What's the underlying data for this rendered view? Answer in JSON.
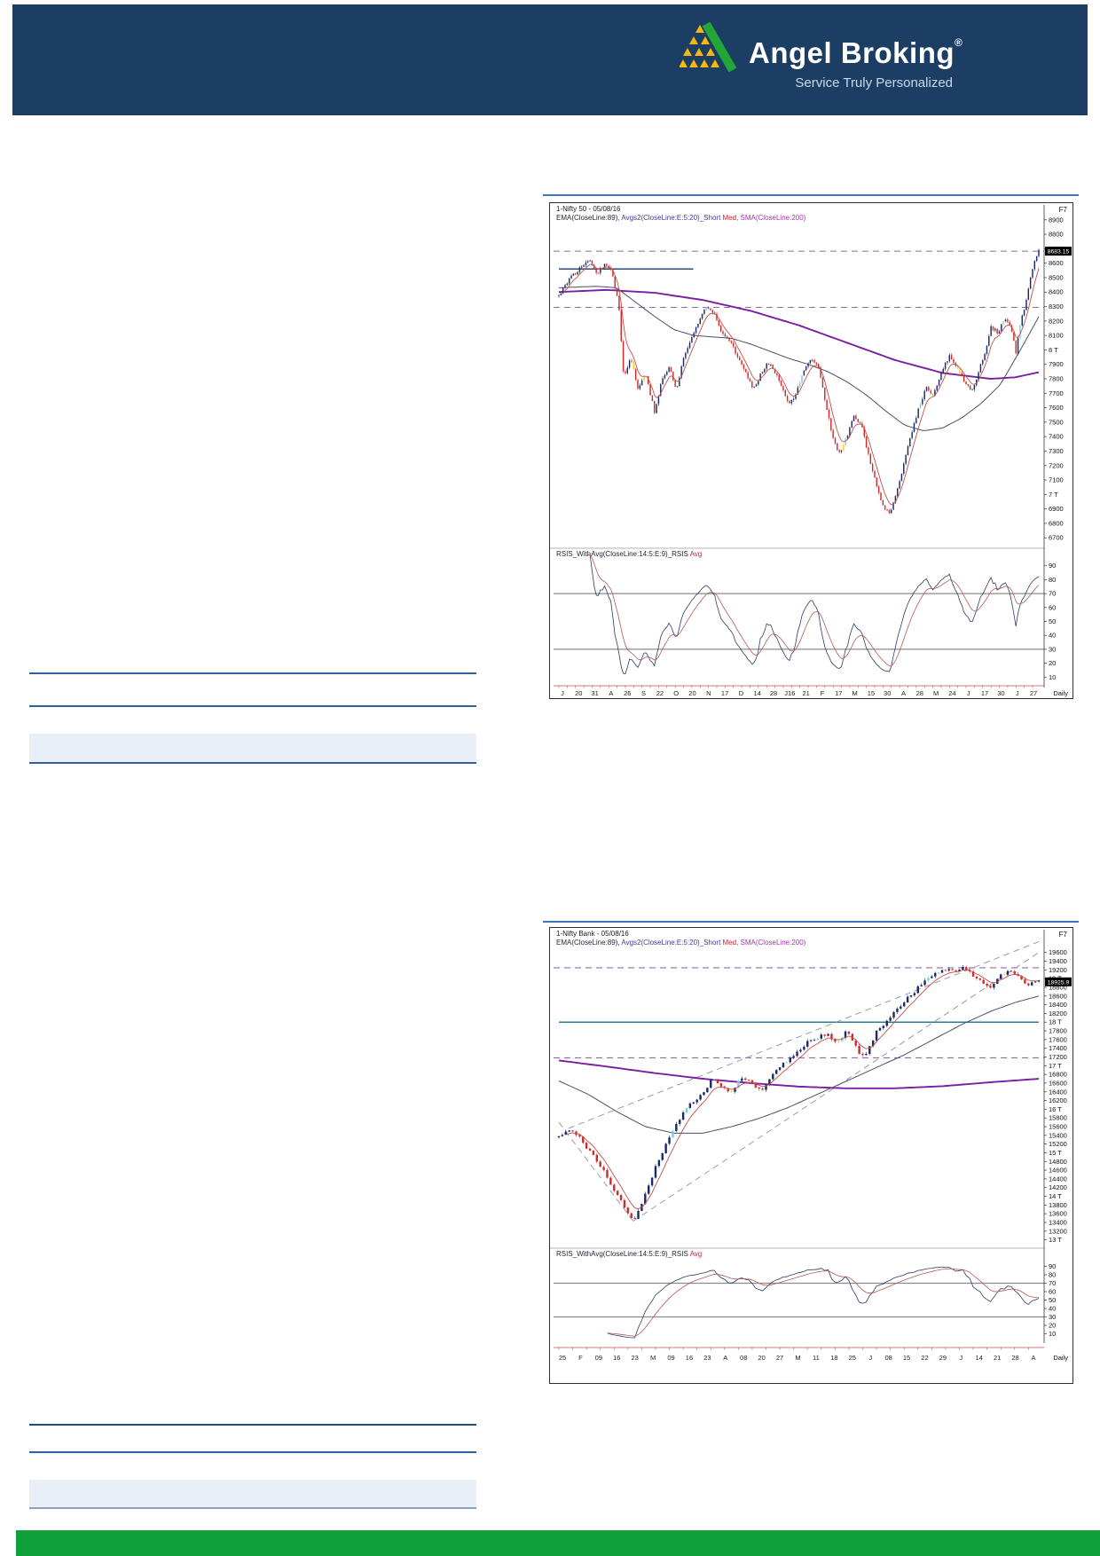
{
  "header": {
    "brand": "Angel Broking",
    "registered": "®",
    "tagline": "Service Truly Personalized",
    "colors": {
      "bar": "#1C3D64",
      "brand_text": "#ffffff",
      "tagline_text": "#C9DAEB",
      "triangle_yellow": "#F6B80E",
      "swoosh_green": "#23A638"
    }
  },
  "decor": {
    "top_rule_blue": "#3A76BF",
    "rule_blue": "#2E5F9E",
    "rule_dark": "#1F4E79",
    "rule_gray": "#8AA2C0",
    "band_blue": "#E9EFF7"
  },
  "footer": {
    "color": "#10A03C"
  },
  "chart_data": [
    {
      "type": "candlestick",
      "title": "1-Nifty 50 - 05/08/16",
      "window_key": "F7",
      "period_label": "Daily",
      "legend": [
        {
          "text": "EMA(CloseLine:89), ",
          "color": "#26263A"
        },
        {
          "text": "Avgs2(CloseLine:E:5:20)_Short ",
          "color": "#3D3D9E"
        },
        {
          "text": "Med, ",
          "color": "#CF2030"
        },
        {
          "text": "SMA(CloseLine:200)",
          "color": "#A335A8"
        }
      ],
      "indicator_label": [
        {
          "text": "RSIS_WithAvg(CloseLine:14:5:E:9)_RSIS ",
          "color": "#26263A"
        },
        {
          "text": "Avg",
          "color": "#CF2030"
        }
      ],
      "last_price": 8683,
      "last_price_label": "8683.15",
      "y_axis": {
        "min": 6640,
        "max": 8960,
        "ticks": [
          [
            8900,
            "8900"
          ],
          [
            8800,
            "8800"
          ],
          [
            8700,
            "8700"
          ],
          [
            8600,
            "8600"
          ],
          [
            8500,
            "8500"
          ],
          [
            8400,
            "8400"
          ],
          [
            8300,
            "8300"
          ],
          [
            8200,
            "8200"
          ],
          [
            8100,
            "8100"
          ],
          [
            8000,
            "8 T"
          ],
          [
            7900,
            "7900"
          ],
          [
            7800,
            "7800"
          ],
          [
            7700,
            "7700"
          ],
          [
            7600,
            "7600"
          ],
          [
            7500,
            "7500"
          ],
          [
            7400,
            "7400"
          ],
          [
            7300,
            "7300"
          ],
          [
            7200,
            "7200"
          ],
          [
            7100,
            "7100"
          ],
          [
            7000,
            "7 T"
          ],
          [
            6900,
            "6900"
          ],
          [
            6800,
            "6800"
          ],
          [
            6700,
            "6700"
          ]
        ]
      },
      "x_ticks": [
        "J",
        "20",
        "31",
        "A",
        "26",
        "S",
        "22",
        "O",
        "20",
        "N",
        "17",
        "D",
        "14",
        "28",
        "J16",
        "21",
        "F",
        "17",
        "M",
        "15",
        "30",
        "A",
        "28",
        "M",
        "24",
        "J",
        "17",
        "30",
        "J",
        "27"
      ],
      "rsi_ticks": [
        "90",
        "80",
        "70",
        "60",
        "50",
        "40",
        "30",
        "20",
        "10"
      ],
      "rsi_guides": [
        70,
        30
      ],
      "n_candles": 232,
      "noise": 16,
      "close_anchors": [
        [
          0,
          8380
        ],
        [
          0.015,
          8460
        ],
        [
          0.03,
          8520
        ],
        [
          0.05,
          8580
        ],
        [
          0.065,
          8630
        ],
        [
          0.08,
          8520
        ],
        [
          0.095,
          8600
        ],
        [
          0.11,
          8560
        ],
        [
          0.125,
          8300
        ],
        [
          0.135,
          7810
        ],
        [
          0.15,
          7950
        ],
        [
          0.165,
          7720
        ],
        [
          0.18,
          7850
        ],
        [
          0.2,
          7560
        ],
        [
          0.215,
          7800
        ],
        [
          0.23,
          7880
        ],
        [
          0.245,
          7720
        ],
        [
          0.26,
          7950
        ],
        [
          0.275,
          8070
        ],
        [
          0.29,
          8180
        ],
        [
          0.305,
          8300
        ],
        [
          0.325,
          8250
        ],
        [
          0.34,
          8120
        ],
        [
          0.36,
          8050
        ],
        [
          0.375,
          7930
        ],
        [
          0.39,
          7840
        ],
        [
          0.405,
          7720
        ],
        [
          0.42,
          7830
        ],
        [
          0.435,
          7920
        ],
        [
          0.45,
          7850
        ],
        [
          0.465,
          7750
        ],
        [
          0.48,
          7620
        ],
        [
          0.495,
          7700
        ],
        [
          0.51,
          7850
        ],
        [
          0.525,
          7950
        ],
        [
          0.54,
          7890
        ],
        [
          0.555,
          7650
        ],
        [
          0.57,
          7400
        ],
        [
          0.585,
          7280
        ],
        [
          0.6,
          7400
        ],
        [
          0.615,
          7540
        ],
        [
          0.63,
          7480
        ],
        [
          0.645,
          7280
        ],
        [
          0.66,
          7080
        ],
        [
          0.675,
          6920
        ],
        [
          0.69,
          6850
        ],
        [
          0.7,
          6980
        ],
        [
          0.715,
          7150
        ],
        [
          0.73,
          7370
        ],
        [
          0.75,
          7600
        ],
        [
          0.765,
          7740
        ],
        [
          0.78,
          7680
        ],
        [
          0.8,
          7870
        ],
        [
          0.815,
          7960
        ],
        [
          0.83,
          7880
        ],
        [
          0.845,
          7780
        ],
        [
          0.86,
          7710
        ],
        [
          0.875,
          7850
        ],
        [
          0.89,
          8010
        ],
        [
          0.9,
          8160
        ],
        [
          0.915,
          8120
        ],
        [
          0.93,
          8220
        ],
        [
          0.945,
          8120
        ],
        [
          0.952,
          7970
        ],
        [
          0.96,
          8150
        ],
        [
          0.97,
          8290
        ],
        [
          0.98,
          8450
        ],
        [
          0.99,
          8600
        ],
        [
          1,
          8683
        ]
      ],
      "ema89_anchors": [
        [
          0,
          8430
        ],
        [
          0.08,
          8440
        ],
        [
          0.12,
          8430
        ],
        [
          0.16,
          8330
        ],
        [
          0.2,
          8230
        ],
        [
          0.24,
          8140
        ],
        [
          0.28,
          8100
        ],
        [
          0.32,
          8090
        ],
        [
          0.36,
          8080
        ],
        [
          0.4,
          8040
        ],
        [
          0.44,
          7990
        ],
        [
          0.48,
          7940
        ],
        [
          0.52,
          7900
        ],
        [
          0.56,
          7850
        ],
        [
          0.6,
          7780
        ],
        [
          0.64,
          7690
        ],
        [
          0.68,
          7580
        ],
        [
          0.72,
          7480
        ],
        [
          0.76,
          7440
        ],
        [
          0.8,
          7460
        ],
        [
          0.84,
          7530
        ],
        [
          0.88,
          7630
        ],
        [
          0.92,
          7760
        ],
        [
          0.96,
          7990
        ],
        [
          1,
          8230
        ]
      ],
      "sma200_anchors": [
        [
          0,
          8400
        ],
        [
          0.1,
          8415
        ],
        [
          0.2,
          8395
        ],
        [
          0.3,
          8345
        ],
        [
          0.4,
          8270
        ],
        [
          0.5,
          8170
        ],
        [
          0.6,
          8050
        ],
        [
          0.7,
          7930
        ],
        [
          0.8,
          7840
        ],
        [
          0.9,
          7800
        ],
        [
          0.95,
          7810
        ],
        [
          1,
          7845
        ]
      ],
      "h_dashed": [
        {
          "price": 8683,
          "color": "#8F6AAE"
        },
        {
          "price": 8294,
          "color": "#8F6AAE"
        }
      ],
      "h_solid": [
        {
          "price": 8560,
          "t0": 0,
          "t1": 0.28,
          "color": "#1F3864",
          "w": 1.3
        }
      ],
      "trend_dashed": [],
      "colors": {
        "up": "#1B2A63",
        "down": "#D02B2B",
        "alt": "#6FD3E0",
        "hl": "#F2CF1F",
        "med": "#C0504D",
        "ema89": "#4A4F6B",
        "sma200": "#7A1FA2",
        "rsi": "#2E3A66",
        "rsi_avg": "#B05A5A"
      }
    },
    {
      "type": "candlestick",
      "title": "1-Nifty Bank - 05/08/16",
      "window_key": "F7",
      "period_label": "Daily",
      "legend": [
        {
          "text": "EMA(CloseLine:89), ",
          "color": "#26263A"
        },
        {
          "text": "Avgs2(CloseLine:E:5:20)_Short ",
          "color": "#3D3D9E"
        },
        {
          "text": "Med, ",
          "color": "#CF2030"
        },
        {
          "text": "SMA(CloseLine:200)",
          "color": "#A335A8"
        }
      ],
      "indicator_label": [
        {
          "text": "RSIS_WithAvg(CloseLine:14:5:E:9)_RSIS ",
          "color": "#26263A"
        },
        {
          "text": "Avg",
          "color": "#CF2030"
        }
      ],
      "last_price": 18926,
      "last_price_label": "18925.9",
      "y_axis": {
        "min": 12890,
        "max": 19900,
        "ticks": [
          [
            19600,
            "19600"
          ],
          [
            19400,
            "19400"
          ],
          [
            19200,
            "19200"
          ],
          [
            19000,
            "19 T"
          ],
          [
            18800,
            "18800"
          ],
          [
            18600,
            "18600"
          ],
          [
            18400,
            "18400"
          ],
          [
            18200,
            "18200"
          ],
          [
            18000,
            "18 T"
          ],
          [
            17800,
            "17800"
          ],
          [
            17600,
            "17600"
          ],
          [
            17400,
            "17400"
          ],
          [
            17200,
            "17200"
          ],
          [
            17000,
            "17 T"
          ],
          [
            16800,
            "16800"
          ],
          [
            16600,
            "16600"
          ],
          [
            16400,
            "16400"
          ],
          [
            16200,
            "16200"
          ],
          [
            16000,
            "16 T"
          ],
          [
            15800,
            "15800"
          ],
          [
            15600,
            "15600"
          ],
          [
            15400,
            "15400"
          ],
          [
            15200,
            "15200"
          ],
          [
            15000,
            "15 T"
          ],
          [
            14800,
            "14800"
          ],
          [
            14600,
            "14600"
          ],
          [
            14400,
            "14400"
          ],
          [
            14200,
            "14200"
          ],
          [
            14000,
            "14 T"
          ],
          [
            13800,
            "13800"
          ],
          [
            13600,
            "13600"
          ],
          [
            13400,
            "13400"
          ],
          [
            13200,
            "13200"
          ],
          [
            13000,
            "13 T"
          ]
        ]
      },
      "x_ticks": [
        "25",
        "F",
        "09",
        "16",
        "23",
        "M",
        "09",
        "16",
        "23",
        "A",
        "08",
        "20",
        "27",
        "M",
        "11",
        "18",
        "25",
        "J",
        "08",
        "15",
        "22",
        "29",
        "J",
        "14",
        "21",
        "28",
        "A"
      ],
      "rsi_ticks": [
        "90",
        "80",
        "70",
        "60",
        "50",
        "40",
        "30",
        "20",
        "10"
      ],
      "rsi_guides": [
        70,
        30
      ],
      "n_candles": 140,
      "noise": 55,
      "close_anchors": [
        [
          0,
          15350
        ],
        [
          0.02,
          15520
        ],
        [
          0.04,
          15380
        ],
        [
          0.06,
          15100
        ],
        [
          0.08,
          14800
        ],
        [
          0.1,
          14450
        ],
        [
          0.12,
          14050
        ],
        [
          0.14,
          13700
        ],
        [
          0.155,
          13430
        ],
        [
          0.17,
          13780
        ],
        [
          0.19,
          14350
        ],
        [
          0.21,
          14900
        ],
        [
          0.23,
          15350
        ],
        [
          0.25,
          15750
        ],
        [
          0.27,
          16100
        ],
        [
          0.3,
          16350
        ],
        [
          0.32,
          16700
        ],
        [
          0.34,
          16550
        ],
        [
          0.36,
          16400
        ],
        [
          0.38,
          16750
        ],
        [
          0.4,
          16600
        ],
        [
          0.42,
          16420
        ],
        [
          0.44,
          16700
        ],
        [
          0.46,
          16950
        ],
        [
          0.48,
          17150
        ],
        [
          0.5,
          17350
        ],
        [
          0.52,
          17550
        ],
        [
          0.54,
          17650
        ],
        [
          0.56,
          17720
        ],
        [
          0.58,
          17520
        ],
        [
          0.6,
          17800
        ],
        [
          0.62,
          17400
        ],
        [
          0.635,
          17180
        ],
        [
          0.65,
          17500
        ],
        [
          0.66,
          17750
        ],
        [
          0.68,
          17980
        ],
        [
          0.7,
          18250
        ],
        [
          0.72,
          18480
        ],
        [
          0.74,
          18700
        ],
        [
          0.76,
          18900
        ],
        [
          0.78,
          19080
        ],
        [
          0.8,
          19230
        ],
        [
          0.82,
          19150
        ],
        [
          0.84,
          19280
        ],
        [
          0.86,
          19100
        ],
        [
          0.88,
          18920
        ],
        [
          0.9,
          18820
        ],
        [
          0.92,
          19050
        ],
        [
          0.94,
          19180
        ],
        [
          0.96,
          19000
        ],
        [
          0.98,
          18870
        ],
        [
          1,
          18926
        ]
      ],
      "ema89_anchors": [
        [
          0,
          16650
        ],
        [
          0.06,
          16350
        ],
        [
          0.12,
          15950
        ],
        [
          0.18,
          15600
        ],
        [
          0.24,
          15450
        ],
        [
          0.3,
          15450
        ],
        [
          0.36,
          15600
        ],
        [
          0.42,
          15800
        ],
        [
          0.48,
          16050
        ],
        [
          0.54,
          16350
        ],
        [
          0.6,
          16650
        ],
        [
          0.66,
          16950
        ],
        [
          0.72,
          17250
        ],
        [
          0.78,
          17600
        ],
        [
          0.84,
          17950
        ],
        [
          0.9,
          18250
        ],
        [
          0.95,
          18450
        ],
        [
          1,
          18600
        ]
      ],
      "sma200_anchors": [
        [
          0,
          17120
        ],
        [
          0.1,
          16980
        ],
        [
          0.2,
          16830
        ],
        [
          0.3,
          16700
        ],
        [
          0.4,
          16600
        ],
        [
          0.5,
          16520
        ],
        [
          0.6,
          16480
        ],
        [
          0.7,
          16480
        ],
        [
          0.8,
          16530
        ],
        [
          0.9,
          16620
        ],
        [
          1,
          16700
        ]
      ],
      "h_dashed": [
        {
          "price": 19250,
          "color": "#8F6AAE"
        },
        {
          "price": 17180,
          "color": "#8F6AAE"
        }
      ],
      "h_solid": [
        {
          "price": 18000,
          "t0": 0,
          "t1": 1,
          "color": "#2E7D9E",
          "w": 1.6
        }
      ],
      "trend_dashed": [
        {
          "pts": [
            [
              0.155,
              13430
            ],
            [
              1,
              19600
            ]
          ],
          "color": "#9A9AA6"
        },
        {
          "pts": [
            [
              0.02,
              15560
            ],
            [
              1,
              19850
            ]
          ],
          "color": "#9A9AA6"
        },
        {
          "pts": [
            [
              0,
              15700
            ],
            [
              0.155,
              13430
            ]
          ],
          "color": "#9A9AA6"
        }
      ],
      "colors": {
        "up": "#1B2A63",
        "down": "#D02B2B",
        "alt": "#6FD3E0",
        "hl": "#F2CF1F",
        "med": "#C0504D",
        "ema89": "#4A4F6B",
        "sma200": "#7A1FA2",
        "rsi": "#2E3A66",
        "rsi_avg": "#B05A5A"
      }
    }
  ]
}
